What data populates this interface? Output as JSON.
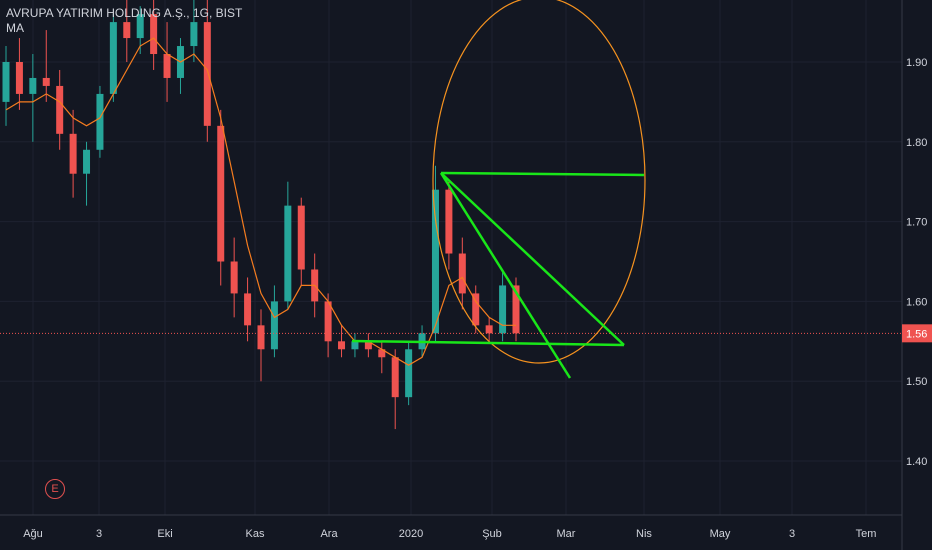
{
  "header": {
    "symbol_line": "AVRUPA YATIRIM HOLDING A.Ş., 1G, BIST",
    "indicator": "MA"
  },
  "earnings_marker": "E",
  "colors": {
    "background": "#131722",
    "up": "#26a69a",
    "down": "#ef5350",
    "ma": "#f57c1f",
    "drawing_lines": "#19e619",
    "ellipse": "#f5921f",
    "price_line": "#ef5350",
    "grid": "#1e2230",
    "axis_text": "#d1d4dc"
  },
  "chart_data": {
    "type": "candlestick",
    "symbol": "AVRUPA YATIRIM HOLDING A.Ş.",
    "interval": "1G",
    "exchange": "BIST",
    "y_axis": {
      "ticks": [
        "1.40",
        "1.50",
        "1.60",
        "1.70",
        "1.80",
        "1.90"
      ],
      "ylim": [
        1.3,
        1.98
      ]
    },
    "x_axis": {
      "ticks": [
        "Ağu",
        "3",
        "Eki",
        "Kas",
        "Ara",
        "2020",
        "Şub",
        "Mar",
        "Nis",
        "May",
        "3",
        "Tem"
      ]
    },
    "last_price": "1.56",
    "last_price_value": 1.56,
    "candles_approx": [
      {
        "x": "Ağu",
        "o": 1.85,
        "h": 1.92,
        "l": 1.82,
        "c": 1.9
      },
      {
        "x": "",
        "o": 1.9,
        "h": 1.93,
        "l": 1.84,
        "c": 1.86
      },
      {
        "x": "",
        "o": 1.86,
        "h": 1.91,
        "l": 1.8,
        "c": 1.88
      },
      {
        "x": "",
        "o": 1.88,
        "h": 1.94,
        "l": 1.85,
        "c": 1.87
      },
      {
        "x": "",
        "o": 1.87,
        "h": 1.89,
        "l": 1.79,
        "c": 1.81
      },
      {
        "x": "",
        "o": 1.81,
        "h": 1.84,
        "l": 1.73,
        "c": 1.76
      },
      {
        "x": "",
        "o": 1.76,
        "h": 1.8,
        "l": 1.72,
        "c": 1.79
      },
      {
        "x": "3",
        "o": 1.79,
        "h": 1.87,
        "l": 1.78,
        "c": 1.86
      },
      {
        "x": "",
        "o": 1.86,
        "h": 1.96,
        "l": 1.85,
        "c": 1.95
      },
      {
        "x": "",
        "o": 1.95,
        "h": 1.98,
        "l": 1.9,
        "c": 1.93
      },
      {
        "x": "",
        "o": 1.93,
        "h": 1.97,
        "l": 1.91,
        "c": 1.96
      },
      {
        "x": "Eki",
        "o": 1.96,
        "h": 1.98,
        "l": 1.89,
        "c": 1.91
      },
      {
        "x": "",
        "o": 1.91,
        "h": 1.95,
        "l": 1.85,
        "c": 1.88
      },
      {
        "x": "",
        "o": 1.88,
        "h": 1.93,
        "l": 1.86,
        "c": 1.92
      },
      {
        "x": "",
        "o": 1.92,
        "h": 1.98,
        "l": 1.9,
        "c": 1.95
      },
      {
        "x": "",
        "o": 1.95,
        "h": 1.98,
        "l": 1.8,
        "c": 1.82
      },
      {
        "x": "Kas",
        "o": 1.82,
        "h": 1.84,
        "l": 1.62,
        "c": 1.65
      },
      {
        "x": "",
        "o": 1.65,
        "h": 1.68,
        "l": 1.58,
        "c": 1.61
      },
      {
        "x": "",
        "o": 1.61,
        "h": 1.63,
        "l": 1.55,
        "c": 1.57
      },
      {
        "x": "",
        "o": 1.57,
        "h": 1.59,
        "l": 1.5,
        "c": 1.54
      },
      {
        "x": "",
        "o": 1.54,
        "h": 1.62,
        "l": 1.53,
        "c": 1.6
      },
      {
        "x": "",
        "o": 1.6,
        "h": 1.75,
        "l": 1.59,
        "c": 1.72
      },
      {
        "x": "Ara",
        "o": 1.72,
        "h": 1.73,
        "l": 1.62,
        "c": 1.64
      },
      {
        "x": "",
        "o": 1.64,
        "h": 1.66,
        "l": 1.58,
        "c": 1.6
      },
      {
        "x": "",
        "o": 1.6,
        "h": 1.61,
        "l": 1.53,
        "c": 1.55
      },
      {
        "x": "",
        "o": 1.55,
        "h": 1.57,
        "l": 1.53,
        "c": 1.54
      },
      {
        "x": "",
        "o": 1.54,
        "h": 1.56,
        "l": 1.53,
        "c": 1.55
      },
      {
        "x": "",
        "o": 1.55,
        "h": 1.56,
        "l": 1.53,
        "c": 1.54
      },
      {
        "x": "",
        "o": 1.54,
        "h": 1.55,
        "l": 1.51,
        "c": 1.53
      },
      {
        "x": "2020",
        "o": 1.53,
        "h": 1.54,
        "l": 1.44,
        "c": 1.48
      },
      {
        "x": "",
        "o": 1.48,
        "h": 1.55,
        "l": 1.47,
        "c": 1.54
      },
      {
        "x": "",
        "o": 1.54,
        "h": 1.57,
        "l": 1.53,
        "c": 1.56
      },
      {
        "x": "",
        "o": 1.56,
        "h": 1.77,
        "l": 1.55,
        "c": 1.74
      },
      {
        "x": "",
        "o": 1.74,
        "h": 1.75,
        "l": 1.64,
        "c": 1.66
      },
      {
        "x": "",
        "o": 1.66,
        "h": 1.68,
        "l": 1.59,
        "c": 1.61
      },
      {
        "x": "",
        "o": 1.61,
        "h": 1.62,
        "l": 1.56,
        "c": 1.57
      },
      {
        "x": "Şub",
        "o": 1.57,
        "h": 1.58,
        "l": 1.55,
        "c": 1.56
      },
      {
        "x": "",
        "o": 1.56,
        "h": 1.64,
        "l": 1.55,
        "c": 1.62
      },
      {
        "x": "",
        "o": 1.62,
        "h": 1.63,
        "l": 1.55,
        "c": 1.56
      }
    ],
    "moving_average_approx": [
      1.84,
      1.85,
      1.85,
      1.86,
      1.85,
      1.83,
      1.82,
      1.83,
      1.86,
      1.89,
      1.92,
      1.93,
      1.91,
      1.9,
      1.91,
      1.89,
      1.83,
      1.75,
      1.67,
      1.61,
      1.58,
      1.59,
      1.62,
      1.62,
      1.6,
      1.57,
      1.55,
      1.55,
      1.54,
      1.53,
      1.52,
      1.53,
      1.57,
      1.62,
      1.63,
      1.6,
      1.58,
      1.57,
      1.57
    ],
    "drawings": {
      "horizontal_line": {
        "from": {
          "x": "2020",
          "y": 1.76
        },
        "to": {
          "x": "Nis",
          "y": 1.76
        }
      },
      "bottom_line": {
        "from": {
          "x": "Ara",
          "y": 1.55
        },
        "to": {
          "x": "Nis",
          "y": 1.54
        }
      },
      "descending_line_1": {
        "from": {
          "x": "2020",
          "y": 1.76
        },
        "to": {
          "x": "Nis",
          "y": 1.54
        }
      },
      "descending_line_2": {
        "from": {
          "x": "2020",
          "y": 1.76
        },
        "to": {
          "x": "Mar",
          "y": 1.51
        }
      },
      "ellipse": "around the February rebound, from ~1.52 to above 1.98"
    }
  }
}
